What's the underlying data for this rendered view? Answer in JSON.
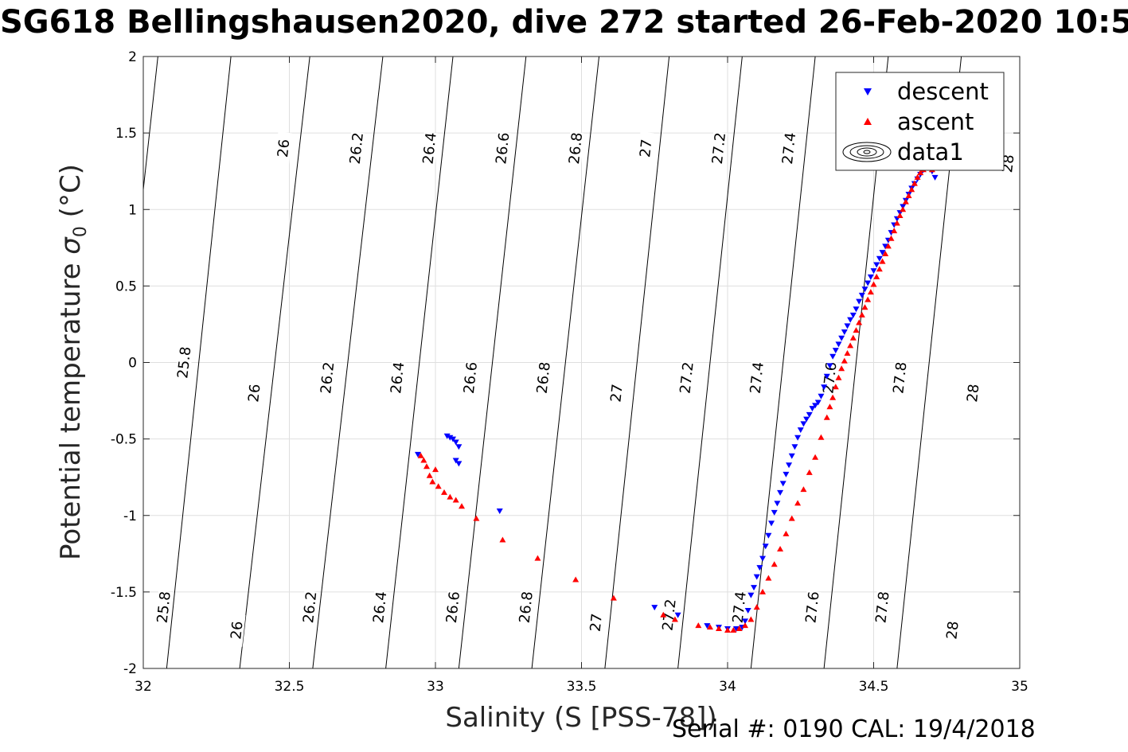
{
  "title": "SG618 Bellingshausen2020, dive 272 started 26-Feb-2020 10:5",
  "footer": "Serial #: 0190  CAL: 19/4/2018",
  "colors": {
    "descent": "#0000ff",
    "ascent": "#ff0000",
    "grid": "#dfdfdf",
    "contour": "#000000"
  },
  "chart_data": {
    "type": "scatter",
    "title": "SG618 Bellingshausen2020, dive 272 started 26-Feb-2020 10:5",
    "xlabel": "Salinity (S [PSS-78])",
    "ylabel_main": "Potential temperature ",
    "ylabel_symbol": "σ",
    "ylabel_sub": "0",
    "ylabel_unit": " (°C)",
    "xlim": [
      32,
      35
    ],
    "ylim": [
      -2,
      2
    ],
    "xticks": [
      32,
      32.5,
      33,
      33.5,
      34,
      34.5,
      35
    ],
    "xtick_labels": [
      "32",
      "32.5",
      "33",
      "33.5",
      "34",
      "34.5",
      "35"
    ],
    "yticks": [
      2,
      1.5,
      1,
      0.5,
      0,
      -0.5,
      -1,
      -1.5,
      -2
    ],
    "ytick_labels": [
      "2",
      "1.5",
      "1",
      "0.5",
      "0",
      "-0.5",
      "-1",
      "-1.5",
      "-2"
    ],
    "grid": true,
    "legend": {
      "location": "top-right",
      "entries": [
        {
          "label": "descent",
          "marker": "triangle-down",
          "color": "#0000ff"
        },
        {
          "label": "ascent",
          "marker": "triangle-up",
          "color": "#ff0000"
        },
        {
          "label": "data1",
          "marker": "contour"
        }
      ]
    },
    "contours": [
      {
        "label": "25.8",
        "s_top": 32.05,
        "s_bottom": 31.82,
        "labels_at": [
          [
            32.07,
            -1.6
          ],
          [
            32.14,
            0
          ]
        ]
      },
      {
        "label": "26",
        "s_top": 32.3,
        "s_bottom": 32.08,
        "labels_at": [
          [
            32.32,
            -1.75
          ],
          [
            32.38,
            -0.2
          ],
          [
            32.48,
            1.4
          ]
        ]
      },
      {
        "label": "26.2",
        "s_top": 32.57,
        "s_bottom": 32.33,
        "labels_at": [
          [
            32.57,
            -1.6
          ],
          [
            32.63,
            -0.1
          ],
          [
            32.73,
            1.4
          ]
        ]
      },
      {
        "label": "26.4",
        "s_top": 32.82,
        "s_bottom": 32.58,
        "labels_at": [
          [
            32.81,
            -1.6
          ],
          [
            32.87,
            -0.1
          ],
          [
            32.98,
            1.4
          ]
        ]
      },
      {
        "label": "26.6",
        "s_top": 33.06,
        "s_bottom": 32.83,
        "labels_at": [
          [
            33.06,
            -1.6
          ],
          [
            33.12,
            -0.1
          ],
          [
            33.23,
            1.4
          ]
        ]
      },
      {
        "label": "26.8",
        "s_top": 33.31,
        "s_bottom": 33.08,
        "labels_at": [
          [
            33.31,
            -1.6
          ],
          [
            33.37,
            -0.1
          ],
          [
            33.48,
            1.4
          ]
        ]
      },
      {
        "label": "27",
        "s_top": 33.56,
        "s_bottom": 33.33,
        "labels_at": [
          [
            33.55,
            -1.7
          ],
          [
            33.62,
            -0.2
          ],
          [
            33.72,
            1.4
          ]
        ]
      },
      {
        "label": "27.2",
        "s_top": 33.8,
        "s_bottom": 33.58,
        "labels_at": [
          [
            33.8,
            -1.65
          ],
          [
            33.86,
            -0.1
          ],
          [
            33.97,
            1.4
          ]
        ]
      },
      {
        "label": "27.4",
        "s_top": 34.05,
        "s_bottom": 33.83,
        "labels_at": [
          [
            34.04,
            -1.6
          ],
          [
            34.1,
            -0.1
          ],
          [
            34.21,
            1.4
          ]
        ]
      },
      {
        "label": "27.6",
        "s_top": 34.3,
        "s_bottom": 34.08,
        "labels_at": [
          [
            34.29,
            -1.6
          ],
          [
            34.35,
            -0.1
          ]
        ]
      },
      {
        "label": "27.8",
        "s_top": 34.55,
        "s_bottom": 34.33,
        "labels_at": [
          [
            34.53,
            -1.6
          ],
          [
            34.59,
            -0.1
          ]
        ]
      },
      {
        "label": "28",
        "s_top": 34.8,
        "s_bottom": 34.58,
        "labels_at": [
          [
            34.77,
            -1.75
          ],
          [
            34.84,
            -0.2
          ],
          [
            34.96,
            1.3
          ]
        ]
      }
    ],
    "series": [
      {
        "name": "descent",
        "marker": "triangle-down",
        "color": "#0000ff",
        "x": [
          32.94,
          33.04,
          33.05,
          33.06,
          33.07,
          33.08,
          33.07,
          33.08,
          33.22,
          33.75,
          33.83,
          33.93,
          33.97,
          34.0,
          34.03,
          34.05,
          34.06,
          34.07,
          34.08,
          34.09,
          34.1,
          34.11,
          34.12,
          34.13,
          34.14,
          34.15,
          34.16,
          34.17,
          34.18,
          34.19,
          34.2,
          34.21,
          34.22,
          34.23,
          34.24,
          34.25,
          34.26,
          34.27,
          34.28,
          34.29,
          34.3,
          34.31,
          34.32,
          34.33,
          34.34,
          34.35,
          34.36,
          34.37,
          34.38,
          34.39,
          34.4,
          34.41,
          34.42,
          34.43,
          34.44,
          34.45,
          34.46,
          34.47,
          34.48,
          34.49,
          34.5,
          34.51,
          34.52,
          34.53,
          34.54,
          34.55,
          34.56,
          34.57,
          34.58,
          34.59,
          34.6,
          34.61,
          34.62,
          34.63,
          34.64,
          34.65,
          34.66,
          34.67,
          34.68,
          34.69,
          34.7,
          34.71
        ],
        "y": [
          -0.6,
          -0.48,
          -0.49,
          -0.5,
          -0.52,
          -0.55,
          -0.64,
          -0.66,
          -0.97,
          -1.6,
          -1.65,
          -1.72,
          -1.73,
          -1.74,
          -1.74,
          -1.73,
          -1.69,
          -1.62,
          -1.52,
          -1.47,
          -1.4,
          -1.34,
          -1.28,
          -1.2,
          -1.13,
          -1.05,
          -0.98,
          -0.92,
          -0.85,
          -0.79,
          -0.73,
          -0.67,
          -0.61,
          -0.55,
          -0.49,
          -0.44,
          -0.4,
          -0.37,
          -0.34,
          -0.3,
          -0.28,
          -0.26,
          -0.22,
          -0.16,
          -0.09,
          -0.02,
          0.04,
          0.08,
          0.12,
          0.16,
          0.2,
          0.24,
          0.28,
          0.31,
          0.35,
          0.4,
          0.44,
          0.48,
          0.52,
          0.56,
          0.6,
          0.64,
          0.68,
          0.72,
          0.76,
          0.8,
          0.85,
          0.9,
          0.94,
          0.98,
          1.02,
          1.06,
          1.1,
          1.14,
          1.17,
          1.2,
          1.23,
          1.26,
          1.28,
          1.28,
          1.25,
          1.21
        ]
      },
      {
        "name": "ascent",
        "marker": "triangle-up",
        "color": "#ff0000",
        "x": [
          32.95,
          32.96,
          32.97,
          32.98,
          32.99,
          33.0,
          33.01,
          33.03,
          33.05,
          33.07,
          33.09,
          33.14,
          33.23,
          33.35,
          33.48,
          33.61,
          33.78,
          33.82,
          33.9,
          33.94,
          33.97,
          34.0,
          34.02,
          34.04,
          34.06,
          34.08,
          34.1,
          34.12,
          34.14,
          34.16,
          34.18,
          34.2,
          34.22,
          34.24,
          34.26,
          34.28,
          34.3,
          34.32,
          34.34,
          34.35,
          34.36,
          34.37,
          34.38,
          34.39,
          34.4,
          34.41,
          34.42,
          34.43,
          34.44,
          34.45,
          34.46,
          34.47,
          34.48,
          34.49,
          34.5,
          34.51,
          34.52,
          34.53,
          34.54,
          34.55,
          34.56,
          34.57,
          34.58,
          34.59,
          34.6,
          34.61,
          34.62,
          34.63,
          34.64,
          34.65,
          34.66,
          34.67,
          34.68,
          34.69,
          34.7
        ],
        "y": [
          -0.61,
          -0.64,
          -0.68,
          -0.74,
          -0.78,
          -0.7,
          -0.81,
          -0.85,
          -0.88,
          -0.9,
          -0.94,
          -1.02,
          -1.16,
          -1.28,
          -1.42,
          -1.54,
          -1.65,
          -1.68,
          -1.72,
          -1.73,
          -1.74,
          -1.75,
          -1.75,
          -1.74,
          -1.72,
          -1.68,
          -1.6,
          -1.5,
          -1.41,
          -1.32,
          -1.22,
          -1.12,
          -1.02,
          -0.92,
          -0.83,
          -0.72,
          -0.62,
          -0.49,
          -0.36,
          -0.29,
          -0.23,
          -0.16,
          -0.1,
          -0.04,
          0.01,
          0.06,
          0.11,
          0.16,
          0.21,
          0.26,
          0.31,
          0.36,
          0.41,
          0.46,
          0.51,
          0.56,
          0.61,
          0.66,
          0.71,
          0.76,
          0.81,
          0.86,
          0.91,
          0.96,
          1.0,
          1.05,
          1.09,
          1.13,
          1.17,
          1.21,
          1.24,
          1.26,
          1.27,
          1.27,
          1.26
        ]
      }
    ]
  }
}
